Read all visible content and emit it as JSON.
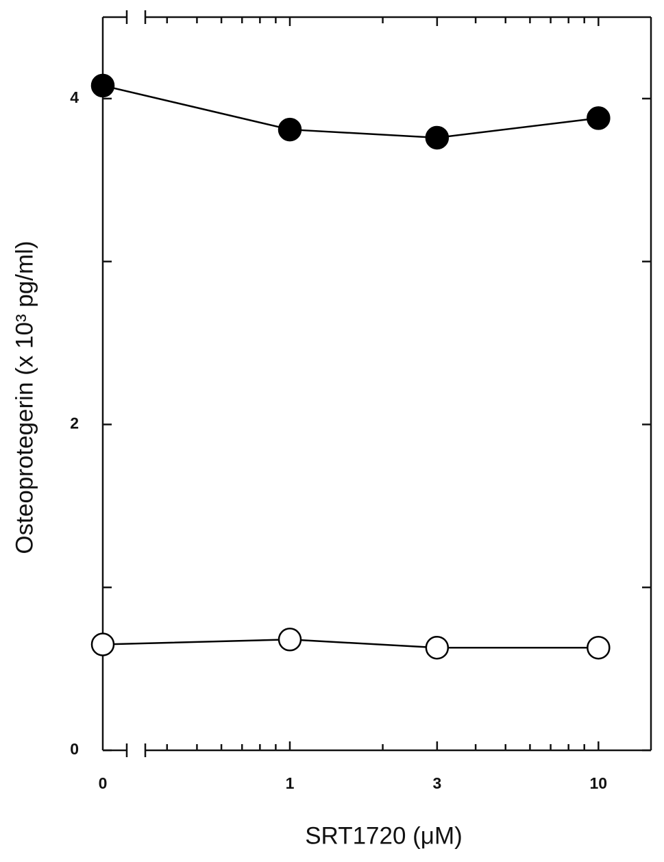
{
  "chart_data": {
    "type": "line",
    "x_label": "SRT1720 (μM)",
    "y_label": "Osteoprotegerin (x 10³ pg/ml)",
    "x": [
      0,
      1,
      3,
      10
    ],
    "xscale": "log",
    "x_axis_break": true,
    "xlim": [
      0.34,
      14.8
    ],
    "xticks": [
      0,
      1,
      3,
      10
    ],
    "xticks_minor": [
      0.4,
      0.5,
      0.6,
      0.7,
      0.8,
      0.9,
      2,
      4,
      5,
      6,
      7,
      8,
      9
    ],
    "ylim": [
      0,
      4.5
    ],
    "yticks": [
      0,
      2,
      4
    ],
    "yticks_minor": [
      1,
      3
    ],
    "series": [
      {
        "marker": "filled",
        "color": "#000000",
        "values": [
          4.08,
          3.81,
          3.76,
          3.88
        ]
      },
      {
        "marker": "open",
        "color": "#000000",
        "values": [
          0.65,
          0.68,
          0.63,
          0.63
        ]
      }
    ]
  }
}
